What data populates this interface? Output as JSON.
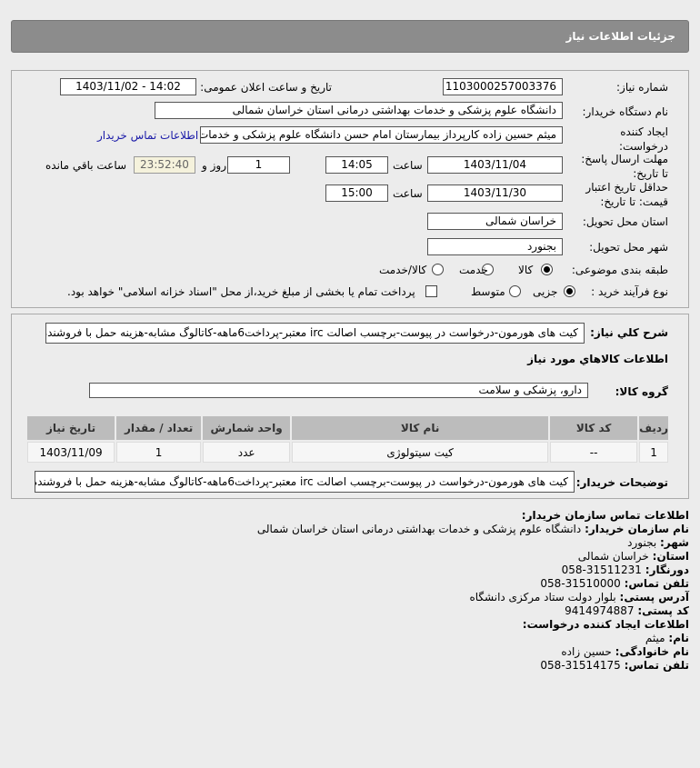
{
  "header": {
    "title": "جزئیات اطلاعات نیاز"
  },
  "form": {
    "need_number_label": "شماره نیاز:",
    "need_number": "1103000257003376",
    "announce_label": "تاریخ و ساعت اعلان عمومی:",
    "announce_value": "1403/11/02 - 14:02",
    "buyer_org_label": "نام دستگاه خریدار:",
    "buyer_org": "دانشگاه علوم پزشکی و خدمات بهداشتی درمانی استان خراسان شمالی",
    "creator_label_1": "ایجاد کننده",
    "creator_label_2": "درخواست:",
    "creator": "میثم  حسین زاده  کارپرداز بیمارستان امام حسن دانشگاه علوم پزشکی و خدمات",
    "buyer_contact_link": "اطلاعات تماس خریدار",
    "reply_label_1": "مهلت ارسال پاسخ:",
    "reply_label_2": "تا تاریخ:",
    "reply_date": "1403/11/04",
    "time_label": "ساعت",
    "reply_time": "14:05",
    "days": "1",
    "days_label": "روز و",
    "remaining": "23:52:40",
    "remaining_label": "ساعت باقي مانده",
    "validity_label_1": "حداقل تاریخ اعتبار",
    "validity_label_2": "قیمت: تا تاریخ:",
    "validity_date": "1403/11/30",
    "validity_time": "15:00",
    "province_label": "استان محل تحویل:",
    "province": "خراسان شمالی",
    "city_label": "شهر محل تحویل:",
    "city": "بجنورد",
    "category_label": "طبقه بندی موضوعی:",
    "category_options": [
      "کالا",
      "خدمت",
      "کالا/خدمت"
    ],
    "category_selected": "کالا",
    "process_label": "نوع فرآیند خرید :",
    "process_options": [
      "جزیی",
      "متوسط"
    ],
    "process_selected": "جزیی",
    "payment_note": "پرداخت تمام یا بخشی از مبلغ خرید،از محل \"اسناد خزانه اسلامی\" خواهد بود."
  },
  "details": {
    "summary_label": "شرح کلي نياز:",
    "summary": "کیت های هورمون-درخواست در پیوست-برچسب اصالت irc معتبر-پرداخت6ماهه-کاتالوگ مشابه-هزینه حمل با فروشنده",
    "goods_heading": "اطلاعات کالاهاي مورد نياز",
    "group_label": "گروه کالا:",
    "group": "دارو، پزشکی و سلامت",
    "table": {
      "headers": [
        "ردیف",
        "کد کالا",
        "نام کالا",
        "واحد شمارش",
        "تعداد / مقدار",
        "تاریخ نیاز"
      ],
      "rows": [
        [
          "1",
          "--",
          "کیت سیتولوژی",
          "عدد",
          "1",
          "1403/11/09"
        ]
      ]
    },
    "notes_label": "توضیحات خریدار:",
    "notes": "کیت های هورمون-درخواست در پیوست-برچسب اصالت irc معتبر-پرداخت6ماهه-کاتالوگ مشابه-هزینه حمل با فروشنده"
  },
  "contact": {
    "heading": "اطلاعات تماس سازمان خریدار:",
    "org_label": "نام سازمان خریدار:",
    "org": "دانشگاه علوم پزشکی و خدمات بهداشتی درمانی استان خراسان شمالی",
    "city_label": "شهر:",
    "city": "بجنورد",
    "province_label": "استان:",
    "province": "خراسان شمالی",
    "fax_label": "دورنگار:",
    "fax": "31511231-058",
    "phone_label": "تلفن تماس:",
    "phone": "31510000-058",
    "address_label": "آدرس پستی:",
    "address": "بلوار دولت ستاد مرکزی دانشگاه",
    "postal_label": "کد پستی:",
    "postal": "9414974887",
    "creator_heading": "اطلاعات ایجاد کننده درخواست:",
    "name_label": "نام:",
    "name": "میثم",
    "family_label": "نام خانوادگی:",
    "family": "حسین زاده",
    "creator_phone_label": "تلفن تماس:",
    "creator_phone": "31514175-058"
  }
}
